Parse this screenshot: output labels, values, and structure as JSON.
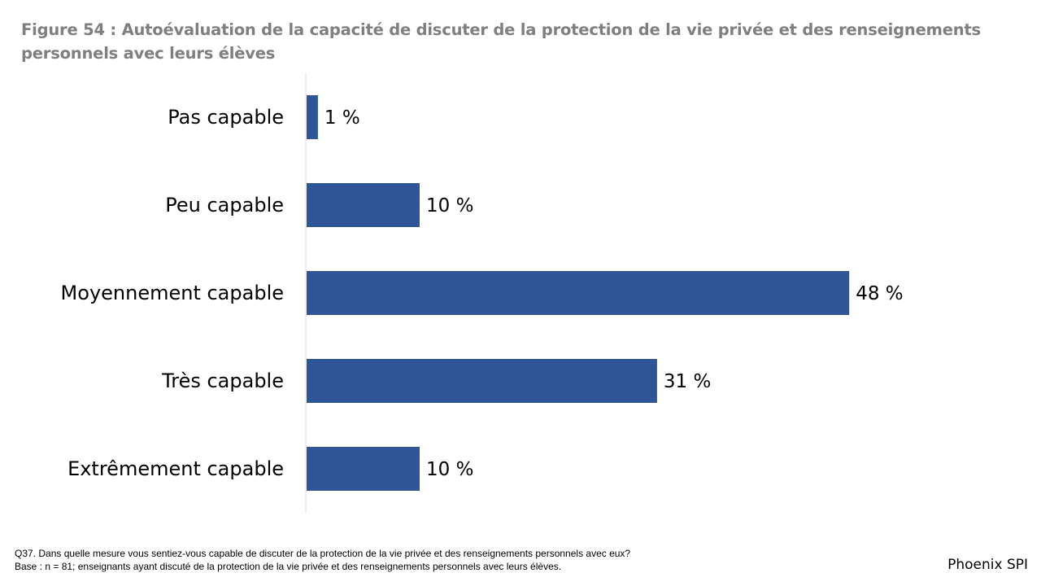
{
  "title": "Figure 54 : Autoévaluation de la capacité de discuter de la protection de la vie privée et des renseignements personnels avec leurs élèves",
  "chart_data": {
    "type": "bar",
    "orientation": "horizontal",
    "categories": [
      "Pas capable",
      "Peu capable",
      "Moyennement capable",
      "Très capable",
      "Extrêmement capable"
    ],
    "values": [
      1,
      10,
      48,
      31,
      10
    ],
    "value_labels": [
      "1 %",
      "10 %",
      "48 %",
      "31 %",
      "10 %"
    ],
    "unit": "%",
    "bar_color": "#2f5597",
    "grid": false,
    "legend": "none"
  },
  "footnote": {
    "question": "Q37. Dans quelle mesure vous sentiez-vous capable de discuter de la protection de la vie privée et des renseignements personnels avec eux?",
    "base": "Base : n = 81; enseignants ayant discuté de la protection de la vie privée et des renseignements personnels avec leurs élèves."
  },
  "brand": "Phoenix SPI"
}
